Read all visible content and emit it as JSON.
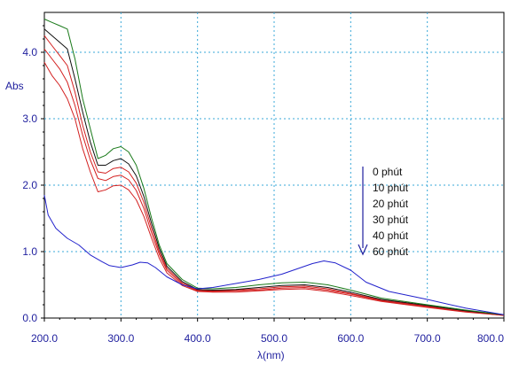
{
  "chart_data": {
    "type": "line",
    "title": "",
    "xlabel": "λ(nm)",
    "ylabel": "Abs",
    "xlim": [
      200.0,
      800.0
    ],
    "ylim": [
      0.0,
      4.6
    ],
    "grid": true,
    "legend_placement": "right",
    "legend_arrow": "↓",
    "x_ticks": [
      "200.0",
      "300.0",
      "400.0",
      "500.0",
      "600.0",
      "700.0",
      "800.0"
    ],
    "y_ticks": [
      "0.0",
      "1.0",
      "2.0",
      "3.0",
      "4.0"
    ],
    "legend_entries": [
      "0 phút",
      "10 phút",
      "20 phút",
      "30 phút",
      "40 phút",
      "60 phút"
    ],
    "series": [
      {
        "name": "0 phút",
        "color": "#2222cc",
        "x": [
          200,
          205,
          215,
          230,
          245,
          260,
          275,
          285,
          300,
          315,
          325,
          335,
          345,
          360,
          380,
          400,
          420,
          450,
          480,
          510,
          530,
          550,
          565,
          580,
          600,
          620,
          650,
          700,
          750,
          800
        ],
        "y": [
          1.85,
          1.55,
          1.35,
          1.2,
          1.1,
          0.95,
          0.85,
          0.79,
          0.76,
          0.8,
          0.84,
          0.83,
          0.76,
          0.62,
          0.5,
          0.44,
          0.46,
          0.52,
          0.58,
          0.66,
          0.74,
          0.82,
          0.86,
          0.83,
          0.72,
          0.54,
          0.4,
          0.28,
          0.15,
          0.05
        ]
      },
      {
        "name": "10 phút",
        "color": "#1a7a1a",
        "x": [
          200,
          210,
          220,
          230,
          240,
          250,
          260,
          270,
          280,
          290,
          300,
          310,
          320,
          330,
          340,
          350,
          360,
          380,
          400,
          420,
          450,
          480,
          510,
          540,
          570,
          600,
          640,
          700,
          750,
          800
        ],
        "y": [
          4.5,
          4.45,
          4.4,
          4.35,
          3.9,
          3.3,
          2.85,
          2.4,
          2.45,
          2.55,
          2.58,
          2.5,
          2.3,
          1.95,
          1.5,
          1.1,
          0.82,
          0.58,
          0.45,
          0.44,
          0.46,
          0.5,
          0.53,
          0.54,
          0.5,
          0.42,
          0.3,
          0.2,
          0.12,
          0.05
        ]
      },
      {
        "name": "20 phút",
        "color": "#111111",
        "x": [
          200,
          210,
          220,
          230,
          240,
          250,
          260,
          270,
          280,
          290,
          300,
          310,
          320,
          330,
          340,
          350,
          360,
          380,
          400,
          420,
          450,
          480,
          510,
          540,
          570,
          600,
          640,
          700,
          750,
          800
        ],
        "y": [
          4.35,
          4.25,
          4.15,
          4.05,
          3.6,
          3.1,
          2.65,
          2.3,
          2.3,
          2.37,
          2.4,
          2.32,
          2.14,
          1.83,
          1.42,
          1.05,
          0.78,
          0.55,
          0.43,
          0.42,
          0.43,
          0.46,
          0.49,
          0.5,
          0.46,
          0.39,
          0.28,
          0.19,
          0.11,
          0.05
        ]
      },
      {
        "name": "30 phút",
        "color": "#d32020",
        "x": [
          200,
          210,
          220,
          230,
          240,
          250,
          260,
          270,
          280,
          290,
          300,
          310,
          320,
          330,
          340,
          350,
          360,
          380,
          400,
          420,
          450,
          480,
          510,
          540,
          570,
          600,
          640,
          700,
          750,
          800
        ],
        "y": [
          4.25,
          4.1,
          3.95,
          3.8,
          3.4,
          2.9,
          2.5,
          2.2,
          2.18,
          2.25,
          2.27,
          2.2,
          2.03,
          1.74,
          1.35,
          1.0,
          0.75,
          0.53,
          0.42,
          0.41,
          0.42,
          0.44,
          0.47,
          0.48,
          0.44,
          0.37,
          0.27,
          0.18,
          0.1,
          0.04
        ]
      },
      {
        "name": "40 phút",
        "color": "#d32020",
        "x": [
          200,
          210,
          220,
          230,
          240,
          250,
          260,
          270,
          280,
          290,
          300,
          310,
          320,
          330,
          340,
          350,
          360,
          380,
          400,
          420,
          450,
          480,
          510,
          540,
          570,
          600,
          640,
          700,
          750,
          800
        ],
        "y": [
          4.05,
          3.9,
          3.75,
          3.55,
          3.2,
          2.75,
          2.38,
          2.1,
          2.07,
          2.13,
          2.15,
          2.08,
          1.92,
          1.65,
          1.28,
          0.96,
          0.72,
          0.51,
          0.41,
          0.4,
          0.41,
          0.42,
          0.45,
          0.46,
          0.42,
          0.36,
          0.26,
          0.17,
          0.1,
          0.04
        ]
      },
      {
        "name": "60 phút",
        "color": "#d32020",
        "x": [
          200,
          210,
          220,
          230,
          240,
          250,
          260,
          270,
          280,
          290,
          300,
          310,
          320,
          330,
          340,
          350,
          360,
          380,
          400,
          420,
          450,
          480,
          510,
          540,
          570,
          600,
          640,
          700,
          750,
          800
        ],
        "y": [
          3.85,
          3.65,
          3.5,
          3.3,
          3.0,
          2.55,
          2.2,
          1.9,
          1.93,
          1.99,
          2.0,
          1.93,
          1.78,
          1.53,
          1.2,
          0.9,
          0.68,
          0.49,
          0.4,
          0.39,
          0.39,
          0.41,
          0.43,
          0.44,
          0.4,
          0.34,
          0.25,
          0.16,
          0.09,
          0.04
        ]
      }
    ]
  },
  "colors": {
    "grid": "#3aa8d8",
    "axis_text": "#1f1f9e",
    "legend_text": "#111111"
  }
}
